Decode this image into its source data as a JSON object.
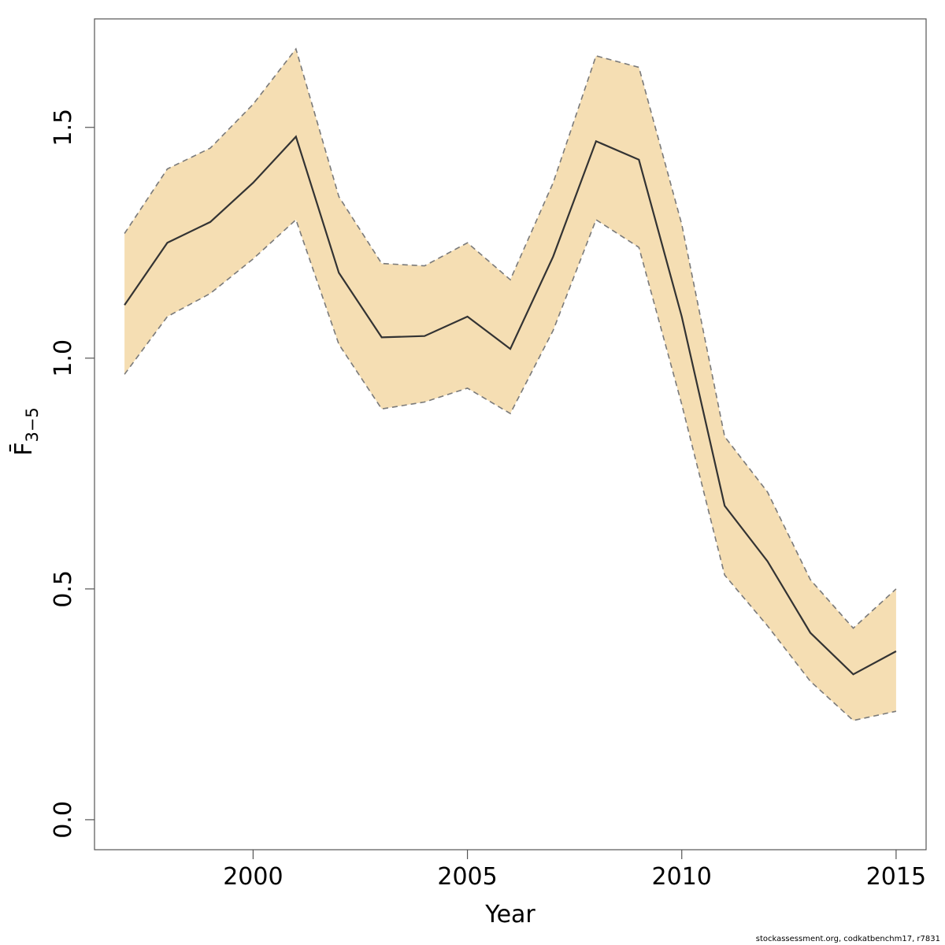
{
  "chart_data": {
    "type": "line",
    "xlabel": "Year",
    "ylabel": "F̄",
    "ylabel_subscript": "3−5",
    "xlim": [
      1996.3,
      2015.7
    ],
    "ylim": [
      -0.065,
      1.735
    ],
    "xticks": [
      2000,
      2005,
      2010,
      2015
    ],
    "xtick_labels": [
      "2000",
      "2005",
      "2010",
      "2015"
    ],
    "yticks": [
      0.0,
      0.5,
      1.0,
      1.5
    ],
    "ytick_labels": [
      "0.0",
      "0.5",
      "1.0",
      "1.5"
    ],
    "grid": false,
    "colors": {
      "band": "#f5deb3",
      "band_edge": "#7a7a7a",
      "line": "#333333",
      "axis": "#555555"
    },
    "x": [
      1997,
      1998,
      1999,
      2000,
      2001,
      2002,
      2003,
      2004,
      2005,
      2006,
      2007,
      2008,
      2009,
      2010,
      2011,
      2012,
      2013,
      2014,
      2015
    ],
    "estimate": [
      1.115,
      1.25,
      1.295,
      1.38,
      1.48,
      1.185,
      1.045,
      1.048,
      1.09,
      1.02,
      1.22,
      1.47,
      1.43,
      1.09,
      0.68,
      0.56,
      0.405,
      0.315,
      0.365
    ],
    "upper": [
      1.27,
      1.41,
      1.455,
      1.55,
      1.67,
      1.35,
      1.205,
      1.2,
      1.25,
      1.17,
      1.38,
      1.655,
      1.63,
      1.29,
      0.83,
      0.71,
      0.52,
      0.415,
      0.5
    ],
    "lower": [
      0.965,
      1.09,
      1.14,
      1.215,
      1.3,
      1.03,
      0.89,
      0.905,
      0.935,
      0.88,
      1.06,
      1.3,
      1.24,
      0.9,
      0.53,
      0.42,
      0.3,
      0.215,
      0.235
    ]
  },
  "footer": "stockassessment.org, codkatbenchm17, r7831"
}
